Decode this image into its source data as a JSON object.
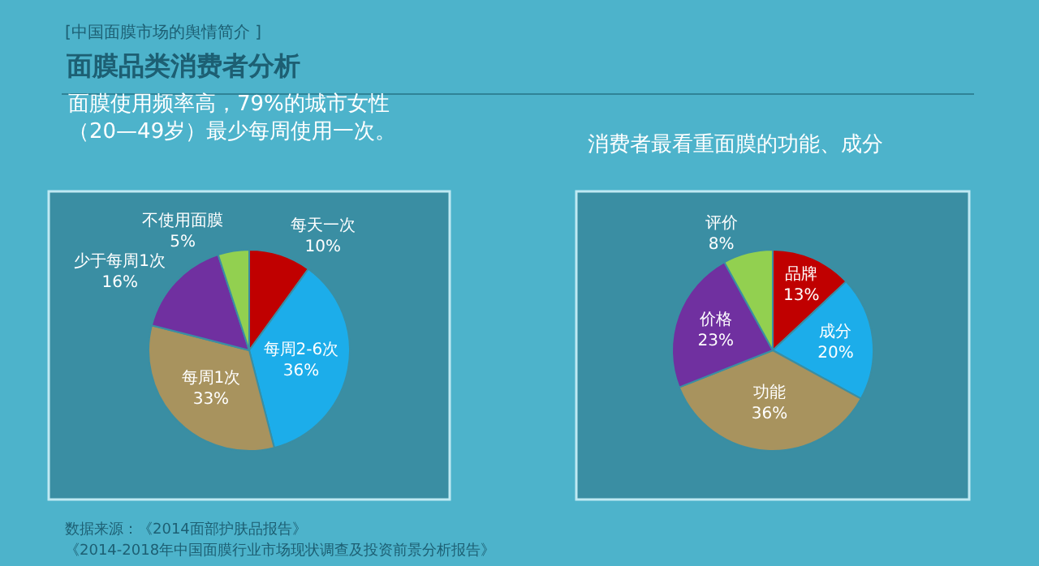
{
  "chart_data": [
    {
      "type": "pie",
      "title": "面膜使用频率高，79%的城市女性（20—49岁）最少每周使用一次。",
      "categories": [
        "每天一次",
        "每周2-6次",
        "每周1次",
        "少于每周1次",
        "不使用面膜"
      ],
      "values": [
        10,
        36,
        33,
        16,
        5
      ],
      "value_labels": [
        "10%",
        "36%",
        "33%",
        "16%",
        "5%"
      ],
      "colors": [
        "#c00000",
        "#1cadea",
        "#a8935e",
        "#7030a0",
        "#92d050"
      ],
      "annotations": [
        "[中国面膜市场的舆情简介 ]",
        "面膜品类消费者分析",
        "数据来源：《2014面部护肤品报告》",
        "《2014-2018年中国面膜行业市场现状调查及投资前景分析报告》"
      ]
    },
    {
      "type": "pie",
      "title": "消费者最看重面膜的功能、成分",
      "categories": [
        "品牌",
        "成分",
        "功能",
        "价格",
        "评价"
      ],
      "values": [
        13,
        20,
        36,
        23,
        8
      ],
      "value_labels": [
        "13%",
        "20%",
        "36%",
        "23%",
        "8%"
      ],
      "colors": [
        "#c00000",
        "#1cadea",
        "#a8935e",
        "#7030a0",
        "#92d050"
      ]
    }
  ]
}
